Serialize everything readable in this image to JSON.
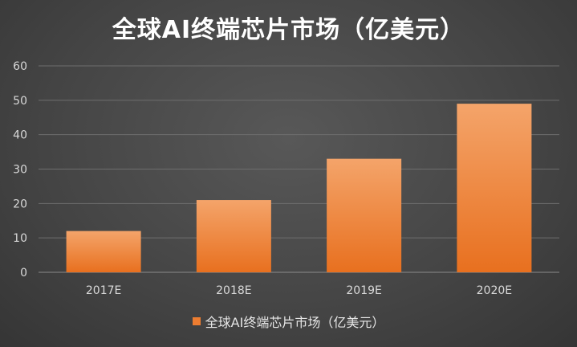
{
  "chart_data": {
    "type": "bar",
    "title": "全球AI终端芯片市场（亿美元）",
    "categories": [
      "2017E",
      "2018E",
      "2019E",
      "2020E"
    ],
    "series": [
      {
        "name": "全球AI终端芯片市场（亿美元）",
        "values": [
          12,
          21,
          33,
          49
        ]
      }
    ],
    "ylim": [
      0,
      60
    ],
    "yticks": [
      "0",
      "10",
      "20",
      "30",
      "40",
      "50",
      "60"
    ],
    "grid": true,
    "legend_position": "bottom",
    "colors": {
      "bar_top": "#f4a46a",
      "bar_bottom": "#e8701f",
      "legend": "#ed7d31",
      "grid": "#6e6e6e",
      "axis_text": "#d9d9d9"
    }
  }
}
